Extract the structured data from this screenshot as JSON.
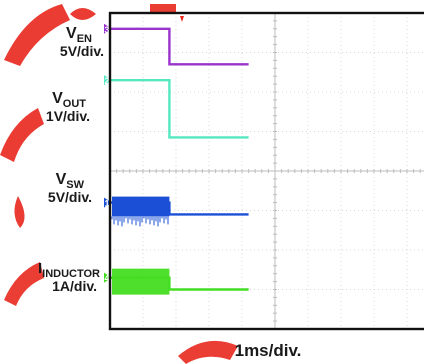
{
  "chart_data": {
    "type": "line",
    "title": "",
    "xlabel": "1ms/div.",
    "ylabel": "",
    "channel_labels": [
      {
        "main": "V",
        "sub": "EN",
        "scale": "5V/div."
      },
      {
        "main": "V",
        "sub": "OUT",
        "scale": "1V/div."
      },
      {
        "main": "V",
        "sub": "SW",
        "scale": "5V/div."
      },
      {
        "main": "I",
        "sub": "INDUCTOR",
        "scale": "1A/div."
      }
    ],
    "x_divisions": 10,
    "y_divisions": 8,
    "grid": true,
    "series": [
      {
        "name": "VEN",
        "marker": "3",
        "color": "#9933cc",
        "points": [
          [
            0,
            7.6
          ],
          [
            1.8,
            7.6
          ],
          [
            1.8,
            6.7
          ],
          [
            4.2,
            6.7
          ]
        ]
      },
      {
        "name": "VOUT",
        "marker": "2",
        "color": "#55e8c0",
        "points": [
          [
            0,
            6.3
          ],
          [
            1.8,
            6.3
          ],
          [
            1.8,
            4.85
          ],
          [
            4.2,
            4.85
          ]
        ]
      },
      {
        "name": "VSW",
        "marker": "1",
        "color": "#1a4fd6",
        "points": [
          [
            0,
            3.2
          ],
          [
            1.8,
            3.2
          ],
          [
            1.8,
            2.9
          ],
          [
            4.2,
            2.9
          ]
        ]
      },
      {
        "name": "IINDUCTOR",
        "marker": "4",
        "color": "#44dd22",
        "points": [
          [
            0,
            1.3
          ],
          [
            1.8,
            1.3
          ],
          [
            1.8,
            1.0
          ],
          [
            4.2,
            1.0
          ]
        ]
      }
    ]
  },
  "colors": {
    "background": "#ffffff",
    "grid": "#d8d8d8",
    "frame": "#111111",
    "watermark": "#e8281e"
  }
}
